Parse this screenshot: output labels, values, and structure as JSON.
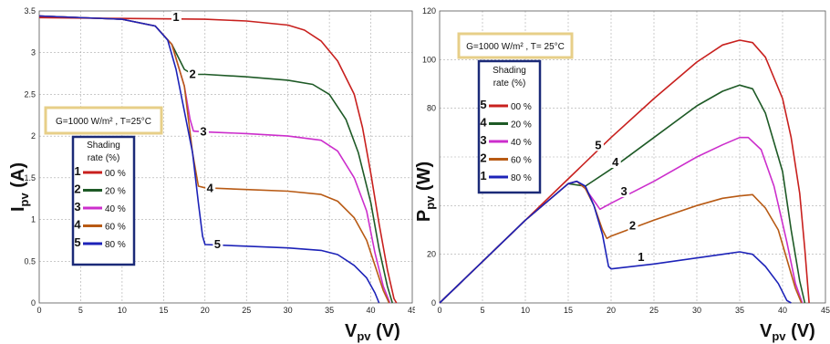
{
  "chart_data": [
    {
      "type": "line",
      "xlabel": "V",
      "xlabel_sub": "pv",
      "xunit": " (V)",
      "ylabel": "I",
      "ylabel_sub": "pv",
      "yunit": " (A)",
      "xlim": [
        0,
        45
      ],
      "ylim": [
        0,
        3.5
      ],
      "xticks": [
        "0",
        "5",
        "10",
        "15",
        "20",
        "25",
        "30",
        "35",
        "40",
        "45"
      ],
      "yticks": [
        "0",
        "0.5",
        "1",
        "1.5",
        "2",
        "2.5",
        "3",
        "3.5"
      ],
      "ytick_values": [
        0,
        0.5,
        1,
        1.5,
        2,
        2.5,
        3,
        3.5
      ],
      "grid": true,
      "conditions": "G=1000 W/m² , T=25°C",
      "legend_title_1": "Shading",
      "legend_title_2": "rate (%)",
      "series": [
        {
          "name": "00 %",
          "label": "1",
          "color": "#c8201e",
          "points": [
            [
              0,
              3.42
            ],
            [
              10,
              3.41
            ],
            [
              20,
              3.4
            ],
            [
              25,
              3.38
            ],
            [
              30,
              3.33
            ],
            [
              32,
              3.27
            ],
            [
              34,
              3.14
            ],
            [
              36,
              2.9
            ],
            [
              38,
              2.5
            ],
            [
              39,
              2.1
            ],
            [
              40,
              1.55
            ],
            [
              41,
              0.95
            ],
            [
              42,
              0.4
            ],
            [
              42.8,
              0.05
            ],
            [
              43.1,
              0
            ]
          ]
        },
        {
          "name": "20 %",
          "label": "2",
          "color": "#1e5a26",
          "points": [
            [
              0,
              3.44
            ],
            [
              10,
              3.4
            ],
            [
              14,
              3.32
            ],
            [
              16,
              3.1
            ],
            [
              17.5,
              2.8
            ],
            [
              18.5,
              2.74
            ],
            [
              20,
              2.74
            ],
            [
              25,
              2.71
            ],
            [
              30,
              2.67
            ],
            [
              33,
              2.62
            ],
            [
              35,
              2.5
            ],
            [
              37,
              2.2
            ],
            [
              38.5,
              1.8
            ],
            [
              40,
              1.2
            ],
            [
              41,
              0.65
            ],
            [
              42,
              0.2
            ],
            [
              42.6,
              0
            ]
          ]
        },
        {
          "name": "40 %",
          "label": "3",
          "color": "#cc2ecc",
          "points": [
            [
              0,
              3.44
            ],
            [
              10,
              3.4
            ],
            [
              14,
              3.32
            ],
            [
              16,
              3.1
            ],
            [
              17.5,
              2.6
            ],
            [
              18.2,
              2.2
            ],
            [
              18.6,
              2.06
            ],
            [
              20,
              2.05
            ],
            [
              25,
              2.03
            ],
            [
              30,
              2.0
            ],
            [
              34,
              1.95
            ],
            [
              36,
              1.82
            ],
            [
              38,
              1.5
            ],
            [
              39.5,
              1.1
            ],
            [
              40.5,
              0.6
            ],
            [
              41.5,
              0.2
            ],
            [
              42.3,
              0
            ]
          ]
        },
        {
          "name": "60 %",
          "label": "4",
          "color": "#b85a14",
          "points": [
            [
              0,
              3.44
            ],
            [
              10,
              3.4
            ],
            [
              14,
              3.32
            ],
            [
              16,
              3.1
            ],
            [
              17.5,
              2.6
            ],
            [
              18.5,
              1.8
            ],
            [
              19.2,
              1.4
            ],
            [
              20,
              1.38
            ],
            [
              25,
              1.36
            ],
            [
              30,
              1.34
            ],
            [
              34,
              1.3
            ],
            [
              36,
              1.22
            ],
            [
              38,
              1.02
            ],
            [
              39.5,
              0.75
            ],
            [
              40.5,
              0.45
            ],
            [
              41.5,
              0.15
            ],
            [
              42.2,
              0
            ]
          ]
        },
        {
          "name": "80 %",
          "label": "5",
          "color": "#1c22b8",
          "points": [
            [
              0,
              3.44
            ],
            [
              10,
              3.4
            ],
            [
              14,
              3.32
            ],
            [
              15.5,
              3.15
            ],
            [
              16.5,
              2.8
            ],
            [
              17.5,
              2.3
            ],
            [
              18.5,
              1.8
            ],
            [
              19.2,
              1.2
            ],
            [
              19.7,
              0.8
            ],
            [
              20,
              0.7
            ],
            [
              25,
              0.68
            ],
            [
              30,
              0.66
            ],
            [
              34,
              0.63
            ],
            [
              36,
              0.58
            ],
            [
              38,
              0.45
            ],
            [
              39.5,
              0.3
            ],
            [
              40.5,
              0.12
            ],
            [
              41,
              0
            ]
          ]
        }
      ],
      "curve_labels": [
        {
          "text": "1",
          "x": 16.5,
          "y": 3.4
        },
        {
          "text": "2",
          "x": 18.5,
          "y": 2.72
        },
        {
          "text": "3",
          "x": 19.8,
          "y": 2.03
        },
        {
          "text": "4",
          "x": 20.6,
          "y": 1.35
        },
        {
          "text": "5",
          "x": 21.5,
          "y": 0.68
        }
      ]
    },
    {
      "type": "line",
      "xlabel": "V",
      "xlabel_sub": "pv",
      "xunit": " (V)",
      "ylabel": "P",
      "ylabel_sub": "pv",
      "yunit": " (W)",
      "xlim": [
        0,
        45
      ],
      "ylim": [
        0,
        120
      ],
      "xticks": [
        "0",
        "5",
        "10",
        "15",
        "20",
        "25",
        "30",
        "35",
        "40",
        "45"
      ],
      "yticks": [
        "0",
        "20",
        "",
        "",
        "80",
        "100",
        "120"
      ],
      "ytick_values": [
        0,
        20,
        40,
        60,
        80,
        100,
        120
      ],
      "grid": true,
      "conditions": "G=1000 W/m² , T= 25°C",
      "legend_title_1": "Shading",
      "legend_title_2": "rate (%)",
      "series": [
        {
          "name": "00 %",
          "label": "5",
          "color": "#c8201e",
          "points": [
            [
              0,
              0
            ],
            [
              5,
              17
            ],
            [
              10,
              34
            ],
            [
              15,
              51
            ],
            [
              20,
              68
            ],
            [
              25,
              84
            ],
            [
              30,
              99
            ],
            [
              33,
              106
            ],
            [
              35,
              108
            ],
            [
              36.5,
              107
            ],
            [
              38,
              101
            ],
            [
              40,
              84
            ],
            [
              41,
              68
            ],
            [
              42,
              45
            ],
            [
              42.6,
              22
            ],
            [
              43.1,
              0
            ]
          ]
        },
        {
          "name": "20 %",
          "label": "4",
          "color": "#1e5a26",
          "points": [
            [
              0,
              0
            ],
            [
              5,
              17
            ],
            [
              10,
              34
            ],
            [
              15,
              49
            ],
            [
              17,
              48
            ],
            [
              20,
              55
            ],
            [
              25,
              68
            ],
            [
              30,
              81
            ],
            [
              33,
              87
            ],
            [
              35,
              89.5
            ],
            [
              36.5,
              88
            ],
            [
              38,
              78
            ],
            [
              40,
              54
            ],
            [
              41,
              30
            ],
            [
              42,
              9
            ],
            [
              42.6,
              0
            ]
          ]
        },
        {
          "name": "40 %",
          "label": "3",
          "color": "#cc2ecc",
          "points": [
            [
              0,
              0
            ],
            [
              5,
              17
            ],
            [
              10,
              34
            ],
            [
              15,
              49
            ],
            [
              16,
              50
            ],
            [
              17,
              47
            ],
            [
              18,
              42
            ],
            [
              18.7,
              38.5
            ],
            [
              20,
              41
            ],
            [
              25,
              50
            ],
            [
              30,
              60
            ],
            [
              33,
              65
            ],
            [
              35,
              68
            ],
            [
              36,
              68
            ],
            [
              37.5,
              63
            ],
            [
              39,
              48
            ],
            [
              40.5,
              25
            ],
            [
              41.5,
              8
            ],
            [
              42.3,
              0
            ]
          ]
        },
        {
          "name": "60 %",
          "label": "2",
          "color": "#b85a14",
          "points": [
            [
              0,
              0
            ],
            [
              5,
              17
            ],
            [
              10,
              34
            ],
            [
              15,
              49
            ],
            [
              16,
              50
            ],
            [
              17,
              47
            ],
            [
              18,
              40
            ],
            [
              19,
              30
            ],
            [
              19.5,
              26.5
            ],
            [
              20,
              27.5
            ],
            [
              25,
              34
            ],
            [
              30,
              40
            ],
            [
              33,
              43
            ],
            [
              35,
              44
            ],
            [
              36.5,
              44.5
            ],
            [
              38,
              39
            ],
            [
              39.5,
              30
            ],
            [
              40.5,
              18
            ],
            [
              41.5,
              6
            ],
            [
              42.2,
              0
            ]
          ]
        },
        {
          "name": "80 %",
          "label": "1",
          "color": "#1c22b8",
          "points": [
            [
              0,
              0
            ],
            [
              5,
              17
            ],
            [
              10,
              34
            ],
            [
              15,
              49
            ],
            [
              16,
              50
            ],
            [
              17,
              48
            ],
            [
              18,
              40
            ],
            [
              19,
              28
            ],
            [
              19.7,
              15
            ],
            [
              20,
              14
            ],
            [
              25,
              16
            ],
            [
              30,
              18.5
            ],
            [
              33,
              20
            ],
            [
              35,
              21
            ],
            [
              36.5,
              20
            ],
            [
              38,
              15
            ],
            [
              39.5,
              8
            ],
            [
              40.5,
              1
            ],
            [
              41,
              0
            ]
          ]
        }
      ],
      "curve_labels": [
        {
          "text": "5",
          "x": 18.5,
          "y": 64
        },
        {
          "text": "4",
          "x": 20.5,
          "y": 57
        },
        {
          "text": "3",
          "x": 21.5,
          "y": 45
        },
        {
          "text": "2",
          "x": 22.5,
          "y": 31
        },
        {
          "text": "1",
          "x": 23.5,
          "y": 18
        }
      ]
    }
  ]
}
